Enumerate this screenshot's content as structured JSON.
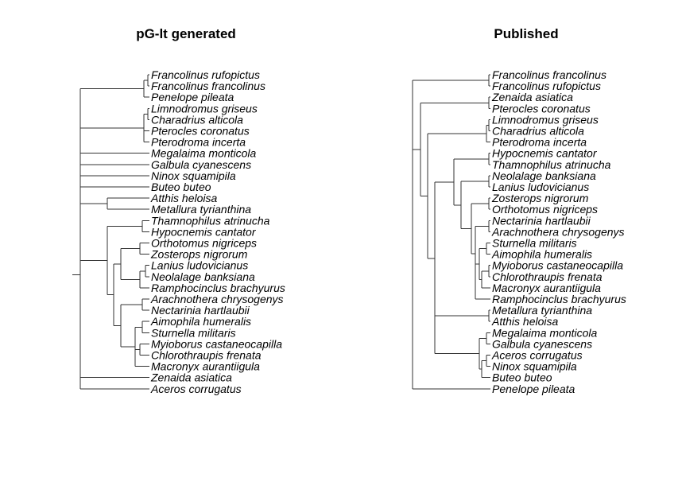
{
  "trees": [
    {
      "title": "pG-lt generated",
      "tips": [
        "Francolinus rufopictus",
        "Francolinus francolinus",
        "Penelope pileata",
        "Limnodromus griseus",
        "Charadrius alticola",
        "Pterocles coronatus",
        "Pterodroma incerta",
        "Megalaima monticola",
        "Galbula cyanescens",
        "Ninox squamipila",
        "Buteo buteo",
        "Atthis heloisa",
        "Metallura tyrianthina",
        "Thamnophilus atrinucha",
        "Hypocnemis cantator",
        "Orthotomus nigriceps",
        "Zosterops nigrorum",
        "Lanius ludovicianus",
        "Neolalage banksiana",
        "Ramphocinclus brachyurus",
        "Arachnothera chrysogenys",
        "Nectarinia hartlaubii",
        "Aimophila humeralis",
        "Sturnella militaris",
        "Myioborus castaneocapilla",
        "Chlorothraupis frenata",
        "Macronyx aurantiigula",
        "Zenaida asiatica",
        "Aceros corrugatus"
      ]
    },
    {
      "title": "Published",
      "tips": [
        "Francolinus francolinus",
        "Francolinus rufopictus",
        "Zenaida asiatica",
        "Pterocles coronatus",
        "Limnodromus griseus",
        "Charadrius alticola",
        "Pterodroma incerta",
        "Hypocnemis cantator",
        "Thamnophilus atrinucha",
        "Neolalage banksiana",
        "Lanius ludovicianus",
        "Zosterops nigrorum",
        "Orthotomus nigriceps",
        "Nectarinia hartlaubii",
        "Arachnothera chrysogenys",
        "Sturnella militaris",
        "Aimophila humeralis",
        "Myioborus castaneocapilla",
        "Chlorothraupis frenata",
        "Macronyx aurantiigula",
        "Ramphocinclus brachyurus",
        "Metallura tyrianthina",
        "Atthis heloisa",
        "Megalaima monticola",
        "Galbula cyanescens",
        "Aceros corrugatus",
        "Ninox squamipila",
        "Buteo buteo",
        "Penelope pileata"
      ]
    }
  ]
}
